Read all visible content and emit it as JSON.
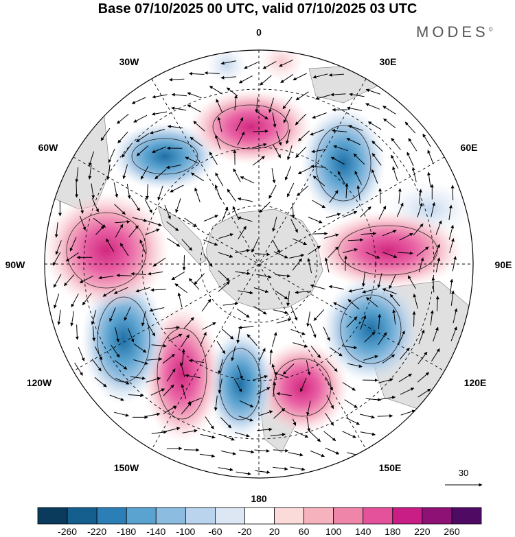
{
  "title": "Base 07/10/2025 00 UTC, valid 07/10/2025 03 UTC",
  "brand": "MODES",
  "brand_mark": "©",
  "longitude_labels": {
    "top": "0",
    "bottom": "180",
    "left": "90W",
    "right": "90E",
    "w30": "30W",
    "e30": "30E",
    "w60": "60W",
    "e60": "60E",
    "w120": "120W",
    "e120": "120E",
    "w150": "150W",
    "e150": "150E"
  },
  "vector_reference": "30",
  "colorbar": {
    "colors": [
      "#0a3b5c",
      "#155f8f",
      "#2b7fb6",
      "#5aa2cf",
      "#8cbde0",
      "#b9d4ec",
      "#dde6f3",
      "#ffffff",
      "#fbdada",
      "#f6b3bd",
      "#ef86a9",
      "#e4529b",
      "#c81e85",
      "#8e1276",
      "#4f0a64"
    ],
    "labels": [
      "-260",
      "-220",
      "-180",
      "-140",
      "-100",
      "-60",
      "-20",
      "20",
      "60",
      "100",
      "140",
      "180",
      "220",
      "260"
    ]
  },
  "anomaly_centers": [
    {
      "name": "low-60W",
      "lon": -48,
      "lat": -52,
      "value": -200
    },
    {
      "name": "high-0",
      "lon": 0,
      "lat": -52,
      "value": 170
    },
    {
      "name": "low-30E",
      "lon": 38,
      "lat": -52,
      "value": -170
    },
    {
      "name": "low-70E",
      "lon": 68,
      "lat": -42,
      "value": -40
    },
    {
      "name": "high-90E",
      "lon": 95,
      "lat": -52,
      "value": 160
    },
    {
      "name": "low-120E",
      "lon": 125,
      "lat": -48,
      "value": -190
    },
    {
      "name": "high-150E",
      "lon": 162,
      "lat": -48,
      "value": 150
    },
    {
      "name": "low-180",
      "lon": -175,
      "lat": -50,
      "value": -150
    },
    {
      "name": "high-150W",
      "lon": -148,
      "lat": -48,
      "value": 170
    },
    {
      "name": "low-120W",
      "lon": -118,
      "lat": -45,
      "value": -200
    },
    {
      "name": "high-80W",
      "lon": -82,
      "lat": -48,
      "value": 180
    }
  ]
}
